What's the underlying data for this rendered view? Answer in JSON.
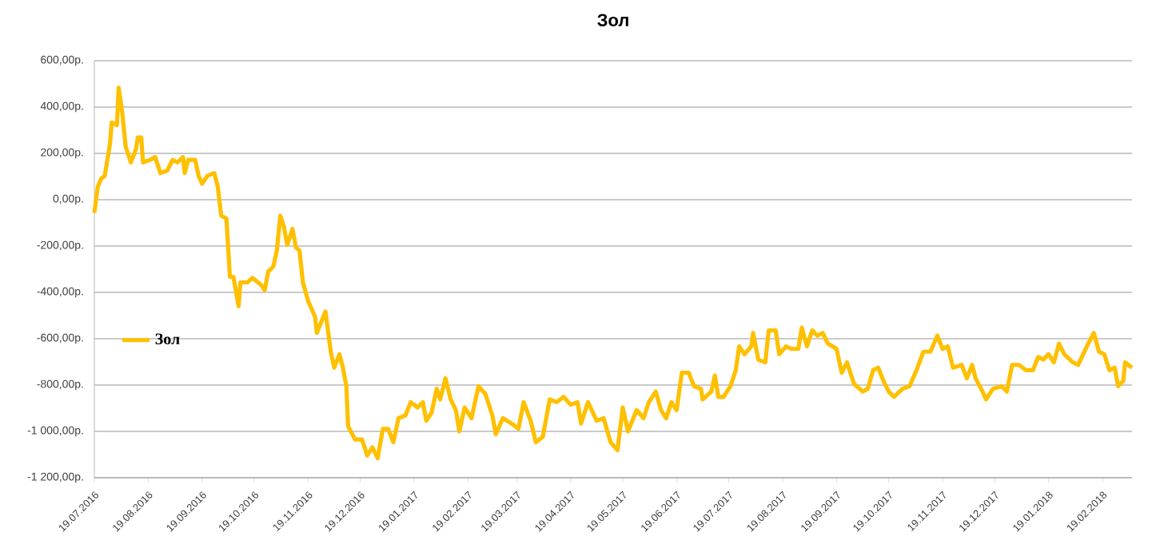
{
  "chart_data": {
    "type": "line",
    "title": "Зол",
    "xlim": [
      "2016-07-19",
      "2018-03-08"
    ],
    "ylim": [
      -1200,
      600
    ],
    "yticks": [
      {
        "value": -1200,
        "label": "-1 200,00р."
      },
      {
        "value": -1000,
        "label": "-1 000,00р."
      },
      {
        "value": -800,
        "label": "-800,00р."
      },
      {
        "value": -600,
        "label": "-600,00р."
      },
      {
        "value": -400,
        "label": "-400,00р."
      },
      {
        "value": -200,
        "label": "-200,00р."
      },
      {
        "value": 0,
        "label": "0,00р."
      },
      {
        "value": 200,
        "label": "200,00р."
      },
      {
        "value": 400,
        "label": "400,00р."
      },
      {
        "value": 600,
        "label": "600,00р."
      }
    ],
    "xticks": [
      {
        "value": "2016-07-19",
        "label": "19.07.2016"
      },
      {
        "value": "2016-08-19",
        "label": "19.08.2016"
      },
      {
        "value": "2016-09-19",
        "label": "19.09.2016"
      },
      {
        "value": "2016-10-19",
        "label": "19.10.2016"
      },
      {
        "value": "2016-11-19",
        "label": "19.11.2016"
      },
      {
        "value": "2016-12-19",
        "label": "19.12.2016"
      },
      {
        "value": "2017-01-19",
        "label": "19.01.2017"
      },
      {
        "value": "2017-02-19",
        "label": "19.02.2017"
      },
      {
        "value": "2017-03-19",
        "label": "19.03.2017"
      },
      {
        "value": "2017-04-19",
        "label": "19.04.2017"
      },
      {
        "value": "2017-05-19",
        "label": "19.05.2017"
      },
      {
        "value": "2017-06-19",
        "label": "19.06.2017"
      },
      {
        "value": "2017-07-19",
        "label": "19.07.2017"
      },
      {
        "value": "2017-08-19",
        "label": "19.08.2017"
      },
      {
        "value": "2017-09-19",
        "label": "19.09.2017"
      },
      {
        "value": "2017-10-19",
        "label": "19.10.2017"
      },
      {
        "value": "2017-11-19",
        "label": "19.11.2017"
      },
      {
        "value": "2017-12-19",
        "label": "19.12.2017"
      },
      {
        "value": "2018-01-19",
        "label": "19.01.2018"
      },
      {
        "value": "2018-02-19",
        "label": "19.02.2018"
      }
    ],
    "grid": "y",
    "legend": "left",
    "marker": "none",
    "line_style": "solid",
    "series": [
      {
        "name": "Зол",
        "color": "#ffc000",
        "x": [
          "2016-07-19",
          "2016-07-21",
          "2016-07-23",
          "2016-07-25",
          "2016-07-28",
          "2016-07-29",
          "2016-08-01",
          "2016-08-02",
          "2016-08-04",
          "2016-08-06",
          "2016-08-09",
          "2016-08-12",
          "2016-08-13",
          "2016-08-15",
          "2016-08-16",
          "2016-08-20",
          "2016-08-23",
          "2016-08-26",
          "2016-08-30",
          "2016-09-02",
          "2016-09-05",
          "2016-09-08",
          "2016-09-09",
          "2016-09-11",
          "2016-09-15",
          "2016-09-17",
          "2016-09-19",
          "2016-09-22",
          "2016-09-26",
          "2016-09-28",
          "2016-09-30",
          "2016-10-03",
          "2016-10-05",
          "2016-10-07",
          "2016-10-10",
          "2016-10-11",
          "2016-10-15",
          "2016-10-18",
          "2016-10-23",
          "2016-10-25",
          "2016-10-27",
          "2016-10-30",
          "2016-11-01",
          "2016-11-03",
          "2016-11-05",
          "2016-11-07",
          "2016-11-10",
          "2016-11-12",
          "2016-11-14",
          "2016-11-16",
          "2016-11-19",
          "2016-11-23",
          "2016-11-24",
          "2016-11-29",
          "2016-12-02",
          "2016-12-04",
          "2016-12-07",
          "2016-12-09",
          "2016-12-11",
          "2016-12-12",
          "2016-12-16",
          "2016-12-20",
          "2016-12-23",
          "2016-12-26",
          "2016-12-29",
          "2017-01-01",
          "2017-01-04",
          "2017-01-07",
          "2017-01-10",
          "2017-01-14",
          "2017-01-17",
          "2017-01-21",
          "2017-01-24",
          "2017-01-26",
          "2017-01-29",
          "2017-02-01",
          "2017-02-03",
          "2017-02-06",
          "2017-02-09",
          "2017-02-12",
          "2017-02-14",
          "2017-02-17",
          "2017-02-21",
          "2017-02-25",
          "2017-03-01",
          "2017-03-05",
          "2017-03-07",
          "2017-03-11",
          "2017-03-16",
          "2017-03-20",
          "2017-03-23",
          "2017-03-27",
          "2017-03-30",
          "2017-04-03",
          "2017-04-07",
          "2017-04-11",
          "2017-04-15",
          "2017-04-19",
          "2017-04-23",
          "2017-04-25",
          "2017-04-29",
          "2017-05-04",
          "2017-05-08",
          "2017-05-12",
          "2017-05-16",
          "2017-05-19",
          "2017-05-22",
          "2017-05-27",
          "2017-05-31",
          "2017-06-03",
          "2017-06-07",
          "2017-06-10",
          "2017-06-13",
          "2017-06-16",
          "2017-06-19",
          "2017-06-22",
          "2017-06-26",
          "2017-06-29",
          "2017-07-03",
          "2017-07-04",
          "2017-07-09",
          "2017-07-11",
          "2017-07-13",
          "2017-07-16",
          "2017-07-20",
          "2017-07-23",
          "2017-07-25",
          "2017-07-28",
          "2017-08-01",
          "2017-08-02",
          "2017-08-05",
          "2017-08-09",
          "2017-08-11",
          "2017-08-15",
          "2017-08-17",
          "2017-08-21",
          "2017-08-24",
          "2017-08-28",
          "2017-08-30",
          "2017-09-02",
          "2017-09-05",
          "2017-09-08",
          "2017-09-11",
          "2017-09-14",
          "2017-09-19",
          "2017-09-22",
          "2017-09-25",
          "2017-09-29",
          "2017-10-04",
          "2017-10-07",
          "2017-10-10",
          "2017-10-13",
          "2017-10-16",
          "2017-10-19",
          "2017-10-22",
          "2017-10-27",
          "2017-10-31",
          "2017-11-04",
          "2017-11-08",
          "2017-11-12",
          "2017-11-16",
          "2017-11-19",
          "2017-11-22",
          "2017-11-25",
          "2017-11-30",
          "2017-12-03",
          "2017-12-06",
          "2017-12-08",
          "2017-12-12",
          "2017-12-14",
          "2017-12-18",
          "2017-12-23",
          "2017-12-26",
          "2017-12-29",
          "2018-01-02",
          "2018-01-06",
          "2018-01-10",
          "2018-01-13",
          "2018-01-16",
          "2018-01-19",
          "2018-01-22",
          "2018-01-25",
          "2018-01-28",
          "2018-02-02",
          "2018-02-05",
          "2018-02-10",
          "2018-02-14",
          "2018-02-17",
          "2018-02-20",
          "2018-02-23",
          "2018-02-26",
          "2018-02-28",
          "2018-03-03",
          "2018-03-04",
          "2018-03-08"
        ],
        "values": [
          -57,
          57,
          92,
          103,
          241,
          333,
          322,
          483,
          380,
          230,
          161,
          219,
          269,
          269,
          161,
          172,
          184,
          115,
          126,
          172,
          161,
          184,
          115,
          172,
          172,
          103,
          69,
          103,
          115,
          57,
          -69,
          -81,
          -333,
          -333,
          -460,
          -357,
          -357,
          -338,
          -368,
          -391,
          -311,
          -288,
          -219,
          -69,
          -115,
          -195,
          -126,
          -207,
          -219,
          -357,
          -437,
          -506,
          -575,
          -483,
          -656,
          -725,
          -667,
          -725,
          -805,
          -978,
          -1035,
          -1035,
          -1104,
          -1069,
          -1116,
          -989,
          -989,
          -1047,
          -943,
          -931,
          -874,
          -897,
          -874,
          -954,
          -920,
          -816,
          -862,
          -771,
          -862,
          -908,
          -1000,
          -897,
          -943,
          -805,
          -839,
          -931,
          -1012,
          -943,
          -966,
          -989,
          -874,
          -954,
          -1047,
          -1023,
          -862,
          -874,
          -851,
          -885,
          -874,
          -966,
          -874,
          -954,
          -943,
          -1047,
          -1081,
          -897,
          -1000,
          -908,
          -943,
          -874,
          -828,
          -908,
          -943,
          -874,
          -908,
          -747,
          -747,
          -805,
          -816,
          -862,
          -828,
          -759,
          -851,
          -851,
          -805,
          -736,
          -633,
          -667,
          -633,
          -575,
          -690,
          -702,
          -564,
          -564,
          -667,
          -633,
          -644,
          -644,
          -552,
          -633,
          -564,
          -587,
          -575,
          -621,
          -644,
          -747,
          -702,
          -794,
          -828,
          -816,
          -736,
          -725,
          -782,
          -828,
          -851,
          -816,
          -805,
          -736,
          -656,
          -656,
          -587,
          -644,
          -633,
          -725,
          -713,
          -771,
          -713,
          -771,
          -828,
          -862,
          -816,
          -805,
          -828,
          -713,
          -713,
          -736,
          -736,
          -679,
          -690,
          -667,
          -702,
          -621,
          -667,
          -702,
          -713,
          -633,
          -575,
          -656,
          -667,
          -736,
          -725,
          -805,
          -782,
          -702,
          -725
        ]
      }
    ]
  }
}
